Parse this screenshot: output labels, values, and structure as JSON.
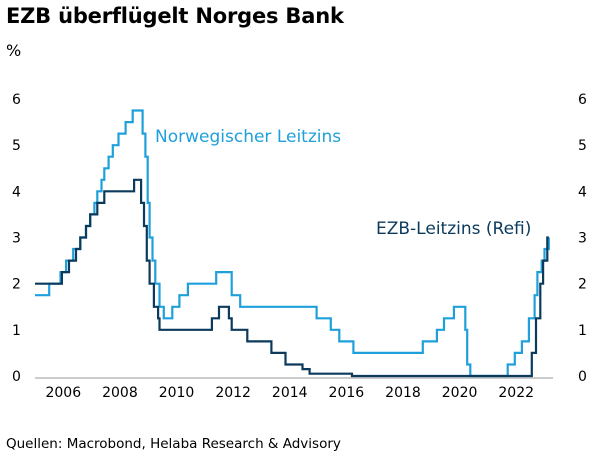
{
  "title": "EZB überflügelt Norges Bank",
  "source": "Quellen: Macrobond, Helaba Research & Advisory",
  "chart_data": {
    "type": "line",
    "ylabel": "%",
    "ylim": [
      0,
      6
    ],
    "xlim": [
      2005.0,
      2023.3
    ],
    "yticks": [
      0,
      1,
      2,
      3,
      4,
      5,
      6
    ],
    "xticks": [
      2006,
      2008,
      2010,
      2012,
      2014,
      2016,
      2018,
      2020,
      2022
    ],
    "grid": false,
    "step": true,
    "series": [
      {
        "name": "Norwegischer Leitzins",
        "color": "#1fa0db",
        "points": [
          [
            2005.0,
            1.75
          ],
          [
            2005.5,
            2.0
          ],
          [
            2005.9,
            2.25
          ],
          [
            2006.1,
            2.5
          ],
          [
            2006.35,
            2.75
          ],
          [
            2006.6,
            3.0
          ],
          [
            2006.8,
            3.25
          ],
          [
            2006.95,
            3.5
          ],
          [
            2007.1,
            3.75
          ],
          [
            2007.2,
            4.0
          ],
          [
            2007.35,
            4.25
          ],
          [
            2007.45,
            4.5
          ],
          [
            2007.6,
            4.75
          ],
          [
            2007.75,
            5.0
          ],
          [
            2007.95,
            5.25
          ],
          [
            2008.2,
            5.5
          ],
          [
            2008.45,
            5.75
          ],
          [
            2008.8,
            5.25
          ],
          [
            2008.9,
            4.75
          ],
          [
            2008.98,
            3.75
          ],
          [
            2009.05,
            3.0
          ],
          [
            2009.15,
            2.5
          ],
          [
            2009.25,
            2.0
          ],
          [
            2009.4,
            1.5
          ],
          [
            2009.55,
            1.25
          ],
          [
            2009.85,
            1.5
          ],
          [
            2010.1,
            1.75
          ],
          [
            2010.4,
            2.0
          ],
          [
            2011.4,
            2.25
          ],
          [
            2011.95,
            1.75
          ],
          [
            2012.25,
            1.5
          ],
          [
            2014.95,
            1.25
          ],
          [
            2015.45,
            1.0
          ],
          [
            2015.75,
            0.75
          ],
          [
            2016.25,
            0.5
          ],
          [
            2018.7,
            0.75
          ],
          [
            2019.2,
            1.0
          ],
          [
            2019.45,
            1.25
          ],
          [
            2019.8,
            1.5
          ],
          [
            2020.2,
            1.0
          ],
          [
            2020.27,
            0.25
          ],
          [
            2020.38,
            0.0
          ],
          [
            2021.7,
            0.25
          ],
          [
            2021.95,
            0.5
          ],
          [
            2022.2,
            0.75
          ],
          [
            2022.45,
            1.25
          ],
          [
            2022.65,
            1.75
          ],
          [
            2022.75,
            2.25
          ],
          [
            2022.9,
            2.5
          ],
          [
            2023.0,
            2.75
          ],
          [
            2023.15,
            3.0
          ]
        ]
      },
      {
        "name": "EZB-Leitzins (Refi)",
        "color": "#0b3a5c",
        "points": [
          [
            2005.0,
            2.0
          ],
          [
            2005.95,
            2.25
          ],
          [
            2006.2,
            2.5
          ],
          [
            2006.45,
            2.75
          ],
          [
            2006.6,
            3.0
          ],
          [
            2006.8,
            3.25
          ],
          [
            2006.95,
            3.5
          ],
          [
            2007.2,
            3.75
          ],
          [
            2007.45,
            4.0
          ],
          [
            2008.5,
            4.25
          ],
          [
            2008.75,
            3.75
          ],
          [
            2008.85,
            3.25
          ],
          [
            2008.95,
            2.5
          ],
          [
            2009.05,
            2.0
          ],
          [
            2009.2,
            1.5
          ],
          [
            2009.35,
            1.25
          ],
          [
            2009.4,
            1.0
          ],
          [
            2011.25,
            1.25
          ],
          [
            2011.5,
            1.5
          ],
          [
            2011.85,
            1.25
          ],
          [
            2011.95,
            1.0
          ],
          [
            2012.5,
            0.75
          ],
          [
            2013.35,
            0.5
          ],
          [
            2013.85,
            0.25
          ],
          [
            2014.45,
            0.15
          ],
          [
            2014.7,
            0.05
          ],
          [
            2016.2,
            0.0
          ],
          [
            2022.55,
            0.5
          ],
          [
            2022.7,
            1.25
          ],
          [
            2022.85,
            2.0
          ],
          [
            2022.95,
            2.5
          ],
          [
            2023.1,
            3.0
          ],
          [
            2023.15,
            3.0
          ]
        ]
      }
    ]
  }
}
